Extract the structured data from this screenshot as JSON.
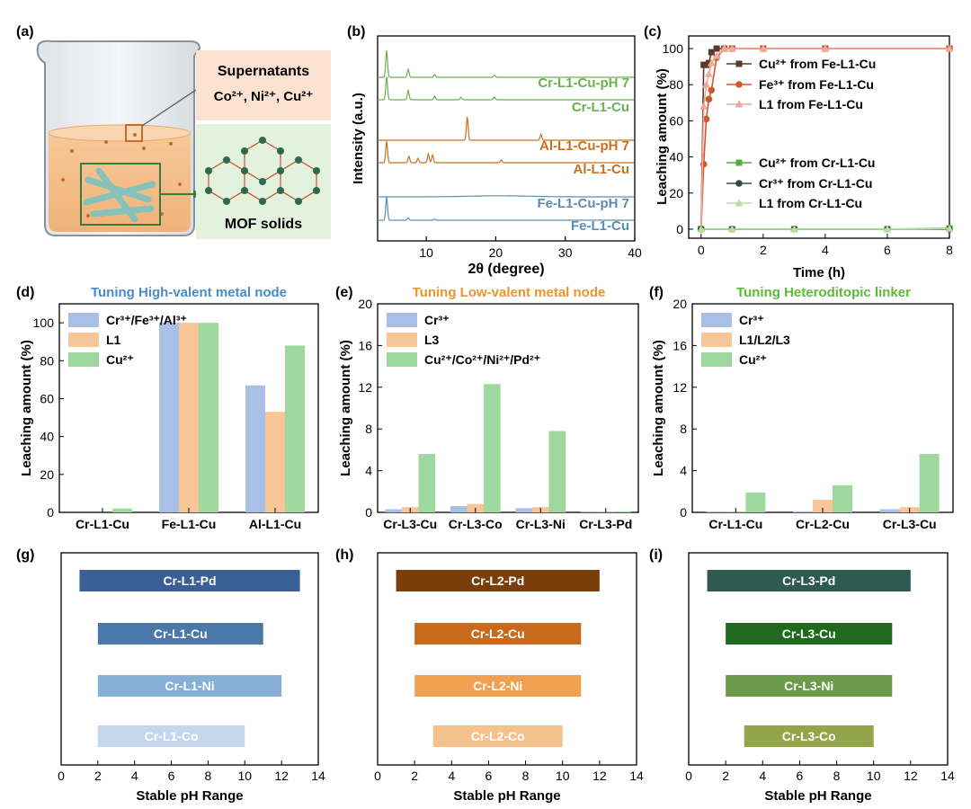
{
  "panel_letters": [
    "(a)",
    "(b)",
    "(c)",
    "(d)",
    "(e)",
    "(f)",
    "(g)",
    "(h)",
    "(i)"
  ],
  "illustration": {
    "supernatant_title": "Supernatants",
    "supernatant_ions": "Co²⁺, Ni²⁺, Cu²⁺",
    "mof_label": "MOF solids"
  },
  "colors": {
    "green_series": "#6ab04c",
    "orange_series": "#c7701e",
    "blue_series": "#5b8db0",
    "bar_blue": "#aabfe6",
    "bar_orange": "#f8c596",
    "bar_green": "#9fd89f"
  },
  "chart_data": [
    {
      "panel": "b",
      "type": "line",
      "xlabel": "2θ (degree)",
      "ylabel": "Intensity (a.u.)",
      "xlim": [
        3,
        40
      ],
      "xticks": [
        10,
        20,
        30,
        40
      ],
      "series": [
        {
          "name": "Cr-L1-Cu-pH 7",
          "color": "#6ab04c",
          "peaks": [
            [
              4.3,
              1.0
            ],
            [
              7.4,
              0.3
            ],
            [
              11.2,
              0.1
            ],
            [
              19.8,
              0.08
            ]
          ]
        },
        {
          "name": "Cr-L1-Cu",
          "color": "#6ab04c",
          "peaks": [
            [
              4.3,
              1.0
            ],
            [
              7.4,
              0.4
            ],
            [
              11.2,
              0.15
            ],
            [
              15,
              0.1
            ],
            [
              19.8,
              0.12
            ]
          ]
        },
        {
          "name": "Al-L1-Cu-pH 7",
          "color": "#c7701e",
          "peaks": [
            [
              15.9,
              1.0
            ],
            [
              26.5,
              0.25
            ]
          ]
        },
        {
          "name": "Al-L1-Cu",
          "color": "#c7701e",
          "peaks": [
            [
              4.3,
              1.0
            ],
            [
              7.5,
              0.3
            ],
            [
              8.8,
              0.2
            ],
            [
              10.3,
              0.4
            ],
            [
              10.9,
              0.35
            ],
            [
              20.8,
              0.12
            ]
          ]
        },
        {
          "name": "Fe-L1-Cu-pH 7",
          "color": "#5b8db0",
          "peaks": [
            [
              20.5,
              0.15
            ]
          ]
        },
        {
          "name": "Fe-L1-Cu",
          "color": "#5b8db0",
          "peaks": [
            [
              4.3,
              1.0
            ],
            [
              7.4,
              0.1
            ],
            [
              11.2,
              0.05
            ]
          ]
        }
      ]
    },
    {
      "panel": "c",
      "type": "line",
      "xlabel": "Time (h)",
      "ylabel": "Leaching amount (%)",
      "xlim": [
        -0.4,
        8
      ],
      "ylim": [
        -5,
        107
      ],
      "xticks": [
        0,
        2,
        4,
        6,
        8
      ],
      "yticks": [
        0,
        20,
        40,
        60,
        80,
        100
      ],
      "series": [
        {
          "name": "Cu²⁺ from Fe-L1-Cu",
          "color": "#5a3a2e",
          "marker": "square",
          "x": [
            0,
            0.083,
            0.167,
            0.25,
            0.333,
            0.5,
            0.75,
            1,
            2,
            4,
            8
          ],
          "y": [
            0,
            91,
            91,
            92,
            98,
            100,
            100,
            100,
            100,
            100,
            100
          ]
        },
        {
          "name": "Fe³⁺ from Fe-L1-Cu",
          "color": "#d0582c",
          "marker": "circle",
          "x": [
            0,
            0.083,
            0.167,
            0.25,
            0.333,
            0.5,
            0.75,
            1,
            2,
            4,
            8
          ],
          "y": [
            0,
            36,
            61,
            72,
            77,
            95,
            100,
            100,
            100,
            100,
            100
          ]
        },
        {
          "name": "L1 from Fe-L1-Cu",
          "color": "#f0a898",
          "marker": "triangle",
          "x": [
            0,
            0.083,
            0.167,
            0.25,
            0.333,
            0.5,
            0.75,
            1,
            2,
            4,
            8
          ],
          "y": [
            0,
            68,
            80,
            86,
            92,
            96,
            100,
            100,
            100,
            100,
            100
          ]
        },
        {
          "name": "Cu²⁺ from Cr-L1-Cu",
          "color": "#4caf3c",
          "marker": "square",
          "x": [
            0,
            1,
            3,
            6,
            8
          ],
          "y": [
            0,
            0,
            0,
            0,
            0.5
          ]
        },
        {
          "name": "Cr³⁺ from Cr-L1-Cu",
          "color": "#3a4a3a",
          "marker": "circle",
          "x": [
            0,
            1,
            3,
            6,
            8
          ],
          "y": [
            0,
            0,
            0,
            0,
            0
          ]
        },
        {
          "name": "L1 from Cr-L1-Cu",
          "color": "#b3e0a0",
          "marker": "triangle",
          "x": [
            0,
            1,
            3,
            6,
            8
          ],
          "y": [
            0,
            0,
            0,
            0,
            0.3
          ]
        }
      ]
    },
    {
      "panel": "d",
      "type": "bar",
      "title": "Tuning High-valent metal node",
      "title_color": "#4a8cc8",
      "ylabel": "Leaching amount (%)",
      "ylim": [
        0,
        110
      ],
      "yticks": [
        0,
        20,
        40,
        60,
        80,
        100
      ],
      "categories": [
        "Cr-L1-Cu",
        "Fe-L1-Cu",
        "Al-L1-Cu"
      ],
      "series": [
        {
          "name": "Cr³⁺/Fe³⁺/Al³⁺",
          "color": "#aabfe6",
          "values": [
            0,
            100,
            67
          ]
        },
        {
          "name": "L1",
          "color": "#f8c596",
          "values": [
            0,
            100,
            53
          ]
        },
        {
          "name": "Cu²⁺",
          "color": "#9fd89f",
          "values": [
            2,
            100,
            88
          ]
        }
      ]
    },
    {
      "panel": "e",
      "type": "bar",
      "title": "Tuning Low-valent metal node",
      "title_color": "#e8962e",
      "ylabel": "Leaching amount (%)",
      "ylim": [
        0,
        20
      ],
      "yticks": [
        0,
        4,
        8,
        12,
        16,
        20
      ],
      "categories": [
        "Cr-L3-Cu",
        "Cr-L3-Co",
        "Cr-L3-Ni",
        "Cr-L3-Pd"
      ],
      "series": [
        {
          "name": "Cr³⁺",
          "color": "#aabfe6",
          "values": [
            0.3,
            0.6,
            0.4,
            0.05
          ]
        },
        {
          "name": "L3",
          "color": "#f8c596",
          "values": [
            0.5,
            0.8,
            0.5,
            0.05
          ]
        },
        {
          "name": "Cu²⁺/Co²⁺/Ni²⁺/Pd²⁺",
          "color": "#9fd89f",
          "values": [
            5.6,
            12.3,
            7.8,
            0.1
          ]
        }
      ]
    },
    {
      "panel": "f",
      "type": "bar",
      "title": "Tuning Heteroditopic linker",
      "title_color": "#5fb83a",
      "ylabel": "Leaching amount (%)",
      "ylim": [
        0,
        20
      ],
      "yticks": [
        0,
        4,
        8,
        12,
        16,
        20
      ],
      "categories": [
        "Cr-L1-Cu",
        "Cr-L2-Cu",
        "Cr-L3-Cu"
      ],
      "series": [
        {
          "name": "Cr³⁺",
          "color": "#aabfe6",
          "values": [
            0.05,
            0.1,
            0.3
          ]
        },
        {
          "name": "L1/L2/L3",
          "color": "#f8c596",
          "values": [
            0.05,
            1.2,
            0.5
          ]
        },
        {
          "name": "Cu²⁺",
          "color": "#9fd89f",
          "values": [
            1.9,
            2.6,
            5.6
          ]
        }
      ]
    },
    {
      "panel": "g",
      "type": "bar",
      "orientation": "horizontal",
      "xlabel": "Stable pH Range",
      "xlim": [
        0,
        14
      ],
      "xticks": [
        0,
        2,
        4,
        6,
        8,
        10,
        12,
        14
      ],
      "bars": [
        {
          "label": "Cr-L1-Pd",
          "range": [
            1,
            13
          ],
          "color": "#3b5f94"
        },
        {
          "label": "Cr-L1-Cu",
          "range": [
            2,
            11
          ],
          "color": "#4a78a8"
        },
        {
          "label": "Cr-L1-Ni",
          "range": [
            2,
            12
          ],
          "color": "#86b0d6"
        },
        {
          "label": "Cr-L1-Co",
          "range": [
            2,
            10
          ],
          "color": "#c3d8ee"
        }
      ]
    },
    {
      "panel": "h",
      "type": "bar",
      "orientation": "horizontal",
      "xlabel": "Stable pH Range",
      "xlim": [
        0,
        14
      ],
      "xticks": [
        0,
        2,
        4,
        6,
        8,
        10,
        12,
        14
      ],
      "bars": [
        {
          "label": "Cr-L2-Pd",
          "range": [
            1,
            12
          ],
          "color": "#7a3d0c"
        },
        {
          "label": "Cr-L2-Cu",
          "range": [
            2,
            11
          ],
          "color": "#c8691c"
        },
        {
          "label": "Cr-L2-Ni",
          "range": [
            2,
            11
          ],
          "color": "#f0a050"
        },
        {
          "label": "Cr-L2-Co",
          "range": [
            3,
            10
          ],
          "color": "#f5c28e"
        }
      ]
    },
    {
      "panel": "i",
      "type": "bar",
      "orientation": "horizontal",
      "xlabel": "Stable pH Range",
      "xlim": [
        0,
        14
      ],
      "xticks": [
        0,
        2,
        4,
        6,
        8,
        10,
        12,
        14
      ],
      "bars": [
        {
          "label": "Cr-L3-Pd",
          "range": [
            1,
            12
          ],
          "color": "#2f5a52"
        },
        {
          "label": "Cr-L3-Cu",
          "range": [
            2,
            11
          ],
          "color": "#1f6a1f"
        },
        {
          "label": "Cr-L3-Ni",
          "range": [
            2,
            11
          ],
          "color": "#6a9a4a"
        },
        {
          "label": "Cr-L3-Co",
          "range": [
            3,
            10
          ],
          "color": "#94a448"
        }
      ]
    }
  ]
}
